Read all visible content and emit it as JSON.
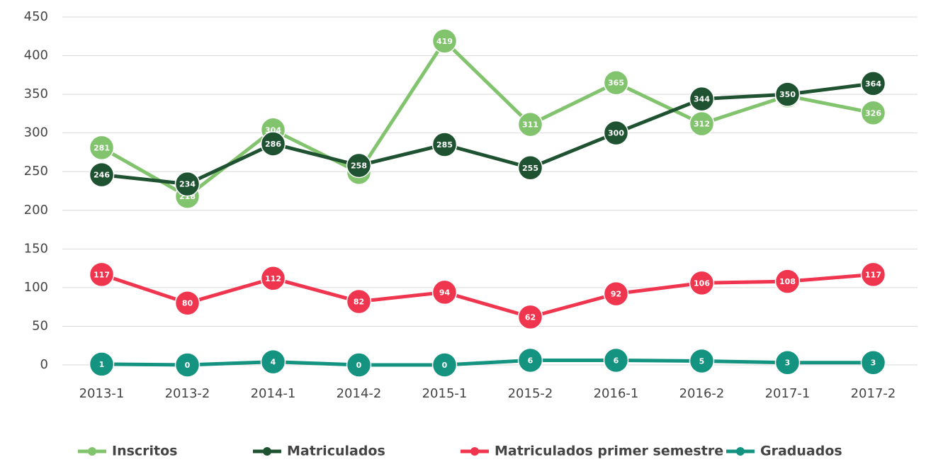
{
  "chart_data": {
    "type": "line",
    "categories": [
      "2013-1",
      "2013-2",
      "2014-1",
      "2014-2",
      "2015-1",
      "2015-2",
      "2016-1",
      "2016-2",
      "2017-1",
      "2017-2"
    ],
    "series": [
      {
        "name": "Inscritos",
        "color": "#82c36e",
        "values": [
          281,
          218,
          304,
          249,
          419,
          311,
          365,
          312,
          348,
          326
        ]
      },
      {
        "name": "Matriculados",
        "color": "#1f5230",
        "values": [
          246,
          234,
          286,
          258,
          285,
          255,
          300,
          344,
          350,
          364
        ]
      },
      {
        "name": "Matriculados primer semestre",
        "color": "#f0354f",
        "values": [
          117,
          80,
          112,
          82,
          94,
          62,
          92,
          106,
          108,
          117
        ]
      },
      {
        "name": "Graduados",
        "color": "#139380",
        "values": [
          1,
          0,
          4,
          0,
          0,
          6,
          6,
          5,
          3,
          3
        ]
      }
    ],
    "ylim": [
      0,
      450
    ],
    "yticks": [
      0,
      50,
      100,
      150,
      200,
      250,
      300,
      350,
      400,
      450
    ],
    "grid": true,
    "legend": "bottom"
  }
}
